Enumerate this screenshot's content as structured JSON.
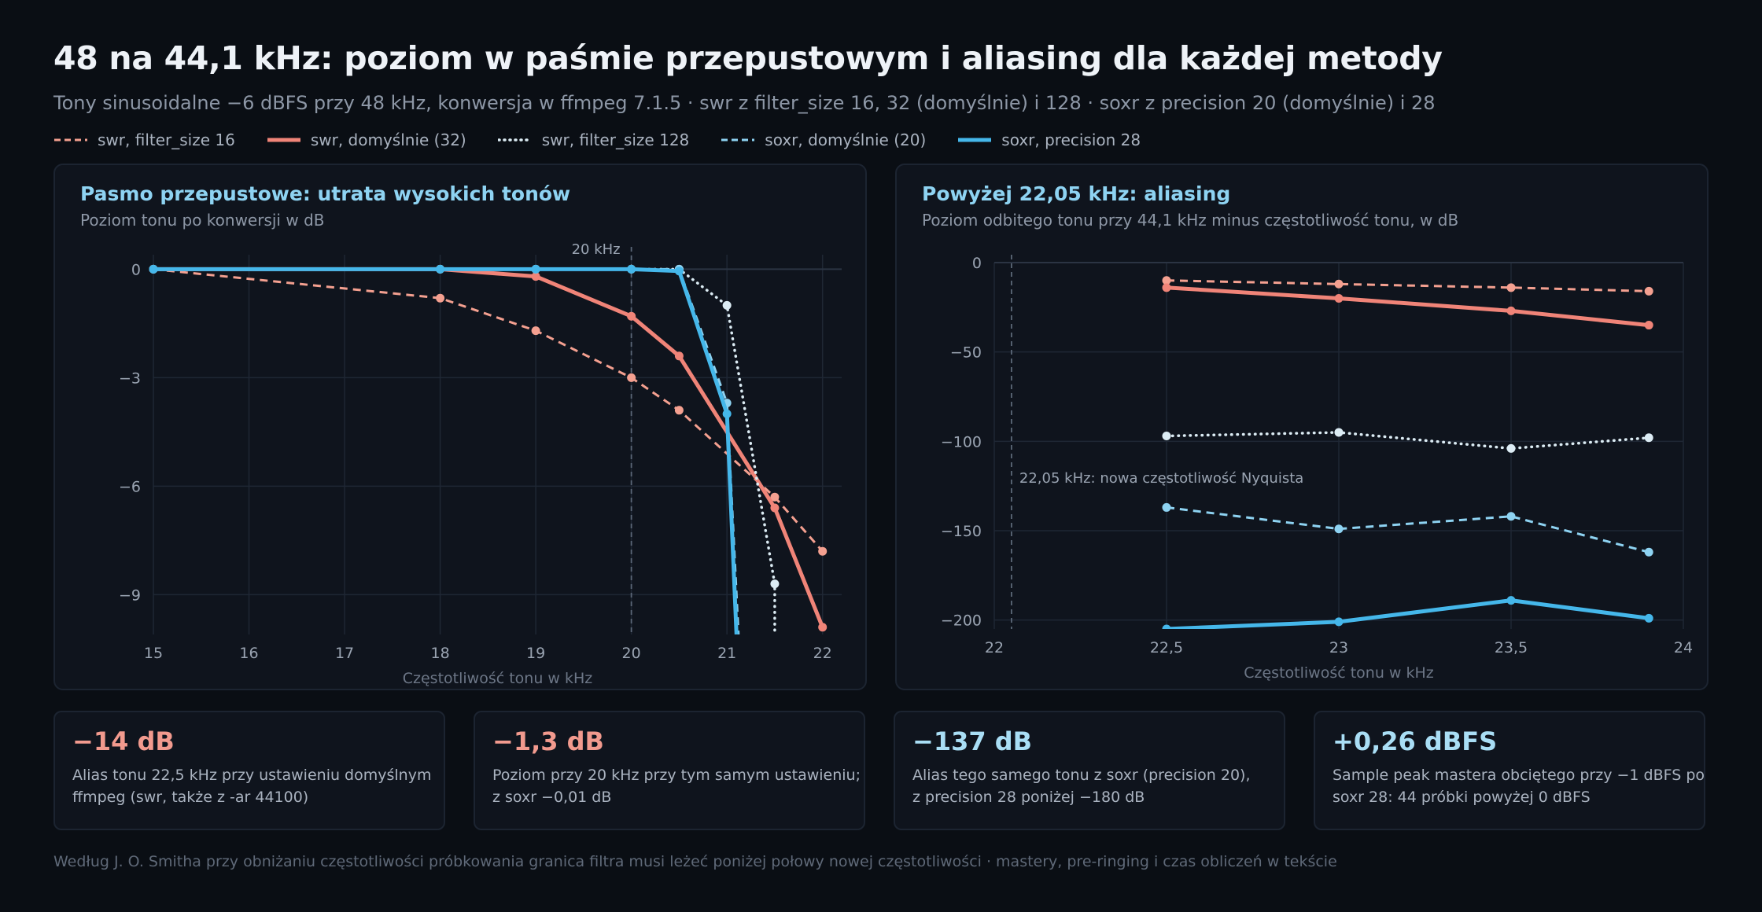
{
  "header": {
    "title": "48 na 44,1 kHz: poziom w paśmie przepustowym i aliasing dla każdej metody",
    "subtitle": "Tony sinusoidalne −6 dBFS przy 48 kHz, konwersja w ffmpeg 7.1.5 · swr z filter_size 16, 32 (domyślnie) i 128 · soxr z precision 20 (domyślnie) i 28"
  },
  "legend": [
    {
      "label": "swr, filter_size 16",
      "color": "#f4a090",
      "dash": "dashed",
      "width": 3
    },
    {
      "label": "swr, domyślnie (32)",
      "color": "#f08478",
      "dash": "solid",
      "width": 5
    },
    {
      "label": "swr, filter_size 128",
      "color": "#dcecf4",
      "dash": "dotted",
      "width": 3.5
    },
    {
      "label": "soxr, domyślnie (20)",
      "color": "#8ed3f2",
      "dash": "dashed",
      "width": 3
    },
    {
      "label": "soxr, precision 28",
      "color": "#45b7ea",
      "dash": "solid",
      "width": 5
    }
  ],
  "panels": {
    "left": {
      "title": "Pasmo przepustowe: utrata wysokich tonów",
      "subtitle": "Poziom tonu po konwersji w dB"
    },
    "right": {
      "title": "Powyżej 22,05 kHz: aliasing",
      "subtitle": "Poziom odbitego tonu przy 44,1 kHz minus częstotliwość tonu, w dB"
    }
  },
  "chart_data": [
    {
      "type": "line",
      "title": "Pasmo przepustowe: utrata wysokich tonów",
      "xlabel": "Częstotliwość tonu w kHz",
      "ylabel": "",
      "xlim": [
        15,
        22.2
      ],
      "ylim": [
        -10.1,
        0.4
      ],
      "xticks": [
        15,
        16,
        17,
        18,
        19,
        20,
        21,
        22
      ],
      "xtick_labels": [
        "15",
        "16",
        "17",
        "18",
        "19",
        "20",
        "21",
        "22"
      ],
      "yticks": [
        0,
        -3,
        -6,
        -9
      ],
      "ytick_labels": [
        "0",
        "−3",
        "−6",
        "−9"
      ],
      "grid": true,
      "annotations": [
        {
          "x": 20,
          "label": "20 kHz"
        }
      ],
      "series": [
        {
          "name": "swr, filter_size 16",
          "x": [
            15,
            18,
            19,
            20,
            20.5,
            21.5,
            22
          ],
          "y": [
            0,
            -0.8,
            -1.7,
            -3.0,
            -3.9,
            -6.3,
            -7.8
          ],
          "ext_x": [],
          "ext_y": []
        },
        {
          "name": "swr, domyślnie (32)",
          "x": [
            15,
            18,
            19,
            20,
            20.5,
            21.5,
            22
          ],
          "y": [
            0,
            0,
            -0.2,
            -1.3,
            -2.4,
            -6.6,
            -9.9
          ],
          "ext_x": [],
          "ext_y": []
        },
        {
          "name": "swr, filter_size 128",
          "x": [
            15,
            18,
            19,
            20,
            20.5,
            21,
            21.5
          ],
          "y": [
            0,
            0,
            0,
            0,
            0,
            -1.0,
            -8.7
          ],
          "ext_x": [
            21.5
          ],
          "ext_y": [
            -10.1
          ]
        },
        {
          "name": "soxr, domyślnie (20)",
          "x": [
            15,
            18,
            19,
            20,
            20.5,
            21
          ],
          "y": [
            0,
            0,
            0,
            0,
            0,
            -3.7
          ],
          "ext_x": [
            21.12
          ],
          "ext_y": [
            -10.1
          ]
        },
        {
          "name": "soxr, precision 28",
          "x": [
            15,
            18,
            19,
            20,
            20.5,
            21
          ],
          "y": [
            0,
            0,
            0,
            0,
            -0.05,
            -4.0
          ],
          "ext_x": [
            21.1
          ],
          "ext_y": [
            -10.1
          ]
        }
      ]
    },
    {
      "type": "line",
      "title": "Powyżej 22,05 kHz: aliasing",
      "xlabel": "Częstotliwość tonu w kHz",
      "ylabel": "",
      "xlim": [
        22,
        24
      ],
      "ylim": [
        -205,
        0
      ],
      "xticks": [
        22,
        22.5,
        23,
        23.5,
        24
      ],
      "xtick_labels": [
        "22",
        "22,5",
        "23",
        "23,5",
        "24"
      ],
      "yticks": [
        0,
        -50,
        -100,
        -150,
        -200
      ],
      "ytick_labels": [
        "0",
        "−50",
        "−100",
        "−150",
        "−200"
      ],
      "grid": true,
      "annotations": [
        {
          "x": 22.05,
          "label": "22,05 kHz: nowa częstotliwość Nyquista"
        }
      ],
      "series": [
        {
          "name": "swr, filter_size 16",
          "x": [
            22.5,
            23,
            23.5,
            23.9
          ],
          "y": [
            -10,
            -12,
            -14,
            -16
          ]
        },
        {
          "name": "swr, domyślnie (32)",
          "x": [
            22.5,
            23,
            23.5,
            23.9
          ],
          "y": [
            -14,
            -20,
            -27,
            -35
          ]
        },
        {
          "name": "swr, filter_size 128",
          "x": [
            22.5,
            23,
            23.5,
            23.9
          ],
          "y": [
            -97,
            -95,
            -104,
            -98
          ]
        },
        {
          "name": "soxr, domyślnie (20)",
          "x": [
            22.5,
            23,
            23.5,
            23.9
          ],
          "y": [
            -137,
            -149,
            -142,
            -162
          ]
        },
        {
          "name": "soxr, precision 28",
          "x": [
            22.5,
            23,
            23.5,
            23.9
          ],
          "y": [
            -205,
            -201,
            -189,
            -199
          ]
        }
      ]
    }
  ],
  "cards": [
    {
      "value": "−14 dB",
      "color": "#f08478",
      "lines": [
        "Alias tonu 22,5 kHz przy ustawieniu domyślnym",
        "ffmpeg (swr, także z -ar 44100)"
      ]
    },
    {
      "value": "−1,3 dB",
      "color": "#f08478",
      "lines": [
        "Poziom przy 20 kHz przy tym samym ustawieniu;",
        "z soxr −0,01 dB"
      ]
    },
    {
      "value": "−137 dB",
      "color": "#a9def5",
      "lines": [
        "Alias tego samego tonu z soxr (precision 20),",
        "z precision 28 poniżej −180 dB"
      ]
    },
    {
      "value": "+0,26 dBFS",
      "color": "#a9def5",
      "lines": [
        "Sample peak mastera obciętego przy −1 dBFS po",
        "soxr 28: 44 próbki powyżej 0 dBFS"
      ]
    }
  ],
  "footer": "Według J. O. Smitha przy obniżaniu częstotliwości próbkowania granica filtra musi leżeć poniżej połowy nowej częstotliwości · mastery, pre-ringing i czas obliczeń w tekście"
}
